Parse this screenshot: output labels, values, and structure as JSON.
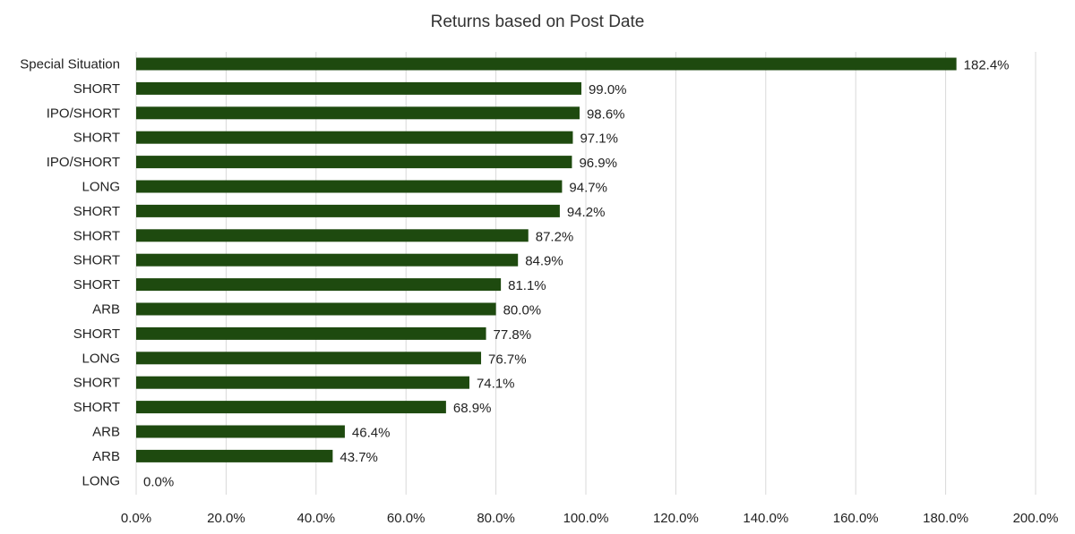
{
  "chart_data": {
    "type": "bar",
    "orientation": "horizontal",
    "title": "Returns based on Post Date",
    "categories": [
      "Special Situation",
      "SHORT",
      "IPO/SHORT",
      "SHORT",
      "IPO/SHORT",
      "LONG",
      "SHORT",
      "SHORT",
      "SHORT",
      "SHORT",
      "ARB",
      "SHORT",
      "LONG",
      "SHORT",
      "SHORT",
      "ARB",
      "ARB",
      "LONG"
    ],
    "values": [
      182.4,
      99.0,
      98.6,
      97.1,
      96.9,
      94.7,
      94.2,
      87.2,
      84.9,
      81.1,
      80.0,
      77.8,
      76.7,
      74.1,
      68.9,
      46.4,
      43.7,
      0.0
    ],
    "data_labels": [
      "182.4%",
      "99.0%",
      "98.6%",
      "97.1%",
      "96.9%",
      "94.7%",
      "94.2%",
      "87.2%",
      "84.9%",
      "81.1%",
      "80.0%",
      "77.8%",
      "76.7%",
      "74.1%",
      "68.9%",
      "46.4%",
      "43.7%",
      "0.0%"
    ],
    "xlim": [
      0,
      200
    ],
    "xticks": [
      0,
      20,
      40,
      60,
      80,
      100,
      120,
      140,
      160,
      180,
      200
    ],
    "xtick_labels": [
      "0.0%",
      "20.0%",
      "40.0%",
      "60.0%",
      "80.0%",
      "100.0%",
      "120.0%",
      "140.0%",
      "160.0%",
      "180.0%",
      "200.0%"
    ],
    "xlabel": "",
    "ylabel": "",
    "grid": "vertical",
    "legend": "none",
    "bar_color": "#1e4a0f",
    "grid_color": "#d9d9d9"
  }
}
